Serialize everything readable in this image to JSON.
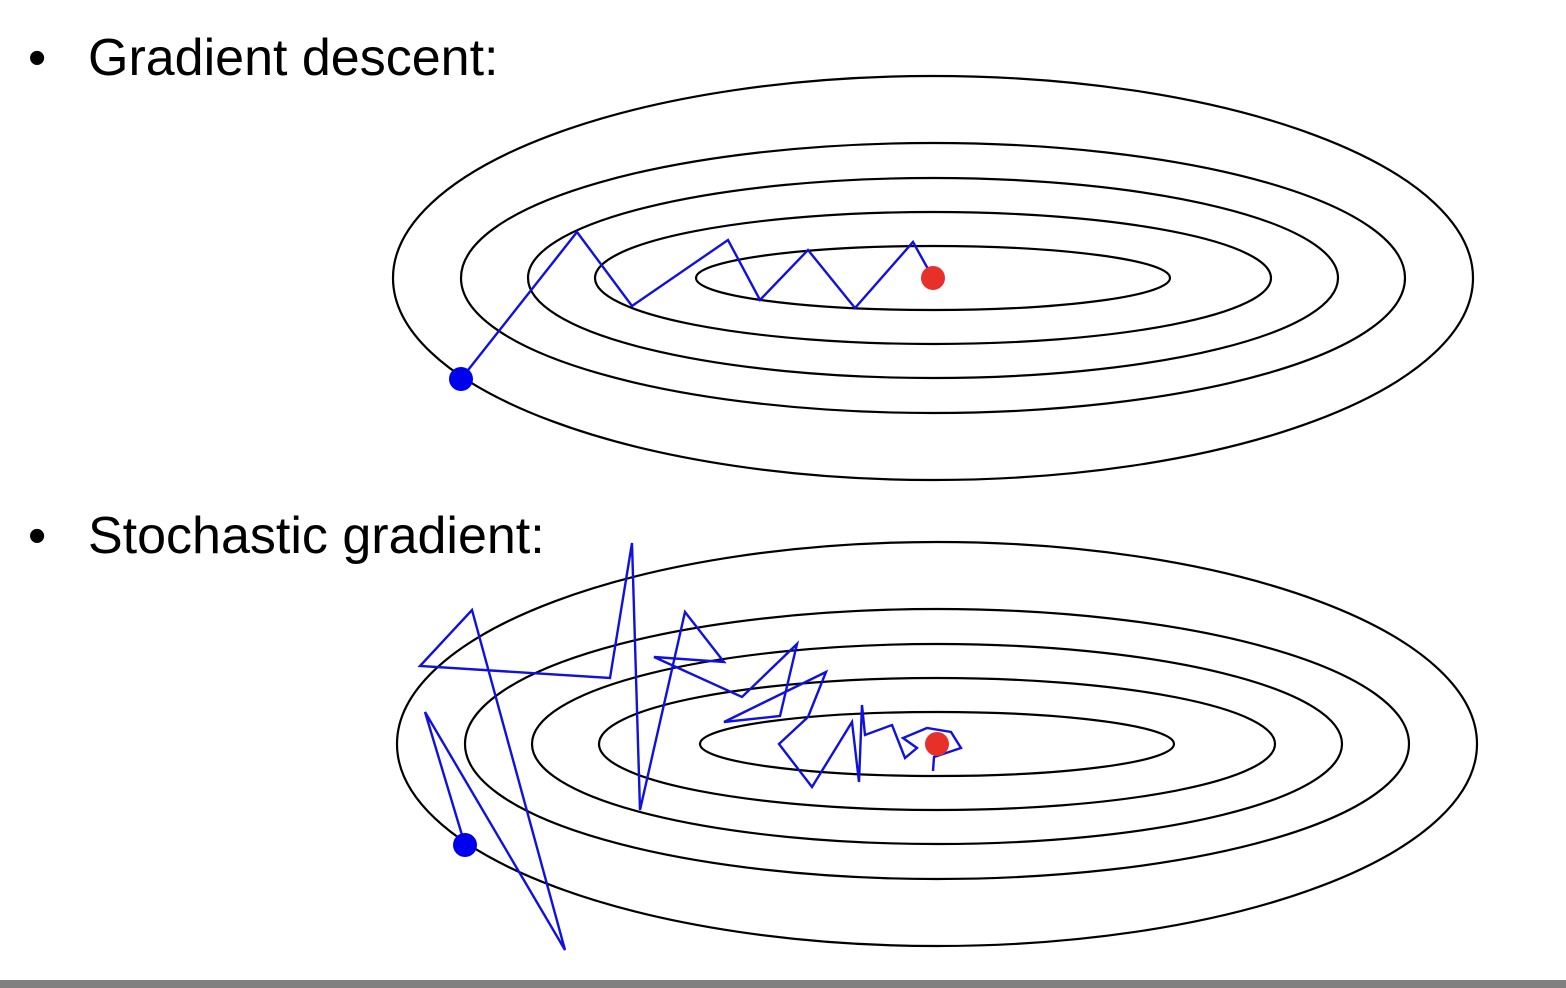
{
  "bullets": [
    {
      "symbol": "•",
      "label": "Gradient descent:"
    },
    {
      "symbol": "•",
      "label": "Stochastic gradient:"
    }
  ],
  "colors": {
    "contour": "#000000",
    "path": "#1010e0",
    "start_point": "#0000ee",
    "optimum_point": "#e8302a",
    "bottom_bar": "#808080"
  },
  "icons": {
    "start": "blue-dot-icon",
    "optimum": "red-dot-icon"
  }
}
